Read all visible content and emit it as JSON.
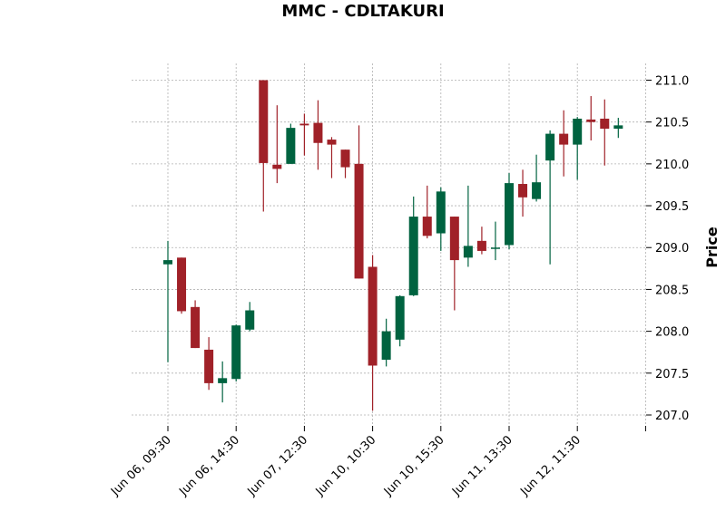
{
  "chart_data": {
    "type": "candlestick",
    "title": "MMC - CDLTAKURI",
    "ylabel": "Price",
    "xlabel": "",
    "ylim": [
      206.87,
      211.2
    ],
    "y_ticks": [
      207.0,
      207.5,
      208.0,
      208.5,
      209.0,
      209.5,
      210.0,
      210.5,
      211.0
    ],
    "y_tick_labels": [
      "207.0",
      "207.5",
      "208.0",
      "208.5",
      "209.0",
      "209.5",
      "210.0",
      "210.5",
      "211.0"
    ],
    "x_ticks": [
      0,
      5,
      10,
      15,
      20,
      25,
      30,
      35
    ],
    "x_tick_labels": [
      "Jun 06, 09:30",
      "Jun 06, 14:30",
      "Jun 07, 12:30",
      "Jun 10, 10:30",
      "Jun 10, 15:30",
      "Jun 11, 13:30",
      "Jun 12, 11:30",
      ""
    ],
    "grid": true,
    "colors": {
      "up": "#006340",
      "down": "#a02128"
    },
    "candles": [
      {
        "open": 208.8,
        "high": 209.08,
        "low": 207.63,
        "close": 208.85
      },
      {
        "open": 208.88,
        "high": 208.88,
        "low": 208.21,
        "close": 208.24
      },
      {
        "open": 208.29,
        "high": 208.37,
        "low": 207.8,
        "close": 207.8
      },
      {
        "open": 207.78,
        "high": 207.93,
        "low": 207.3,
        "close": 207.38
      },
      {
        "open": 207.38,
        "high": 207.64,
        "low": 207.15,
        "close": 207.44
      },
      {
        "open": 207.43,
        "high": 208.08,
        "low": 207.4,
        "close": 208.07
      },
      {
        "open": 208.02,
        "high": 208.35,
        "low": 208.0,
        "close": 208.25
      },
      {
        "open": 211.0,
        "high": 211.0,
        "low": 209.43,
        "close": 210.01
      },
      {
        "open": 209.99,
        "high": 210.7,
        "low": 209.77,
        "close": 209.94
      },
      {
        "open": 210.0,
        "high": 210.48,
        "low": 210.0,
        "close": 210.43
      },
      {
        "open": 210.48,
        "high": 210.6,
        "low": 210.1,
        "close": 210.46
      },
      {
        "open": 210.49,
        "high": 210.76,
        "low": 209.93,
        "close": 210.25
      },
      {
        "open": 210.29,
        "high": 210.32,
        "low": 209.83,
        "close": 210.23
      },
      {
        "open": 210.17,
        "high": 210.17,
        "low": 209.83,
        "close": 209.96
      },
      {
        "open": 210.0,
        "high": 210.46,
        "low": 208.63,
        "close": 208.63
      },
      {
        "open": 208.77,
        "high": 208.91,
        "low": 207.05,
        "close": 207.59
      },
      {
        "open": 207.66,
        "high": 208.15,
        "low": 207.58,
        "close": 208.0
      },
      {
        "open": 207.9,
        "high": 208.43,
        "low": 207.82,
        "close": 208.42
      },
      {
        "open": 208.43,
        "high": 209.61,
        "low": 208.42,
        "close": 209.37
      },
      {
        "open": 209.37,
        "high": 209.74,
        "low": 209.11,
        "close": 209.14
      },
      {
        "open": 209.17,
        "high": 209.72,
        "low": 208.96,
        "close": 209.67
      },
      {
        "open": 209.37,
        "high": 209.37,
        "low": 208.25,
        "close": 208.85
      },
      {
        "open": 208.88,
        "high": 209.74,
        "low": 208.77,
        "close": 209.02
      },
      {
        "open": 209.08,
        "high": 209.25,
        "low": 208.92,
        "close": 208.96
      },
      {
        "open": 209.0,
        "high": 209.31,
        "low": 208.85,
        "close": 209.0
      },
      {
        "open": 209.03,
        "high": 209.89,
        "low": 208.98,
        "close": 209.77
      },
      {
        "open": 209.76,
        "high": 209.93,
        "low": 209.37,
        "close": 209.6
      },
      {
        "open": 209.58,
        "high": 210.11,
        "low": 209.55,
        "close": 209.78
      },
      {
        "open": 210.04,
        "high": 210.4,
        "low": 208.8,
        "close": 210.36
      },
      {
        "open": 210.36,
        "high": 210.64,
        "low": 209.85,
        "close": 210.23
      },
      {
        "open": 210.23,
        "high": 210.56,
        "low": 209.81,
        "close": 210.54
      },
      {
        "open": 210.53,
        "high": 210.81,
        "low": 210.28,
        "close": 210.5
      },
      {
        "open": 210.54,
        "high": 210.77,
        "low": 209.98,
        "close": 210.42
      },
      {
        "open": 210.42,
        "high": 210.55,
        "low": 210.31,
        "close": 210.46
      }
    ]
  }
}
